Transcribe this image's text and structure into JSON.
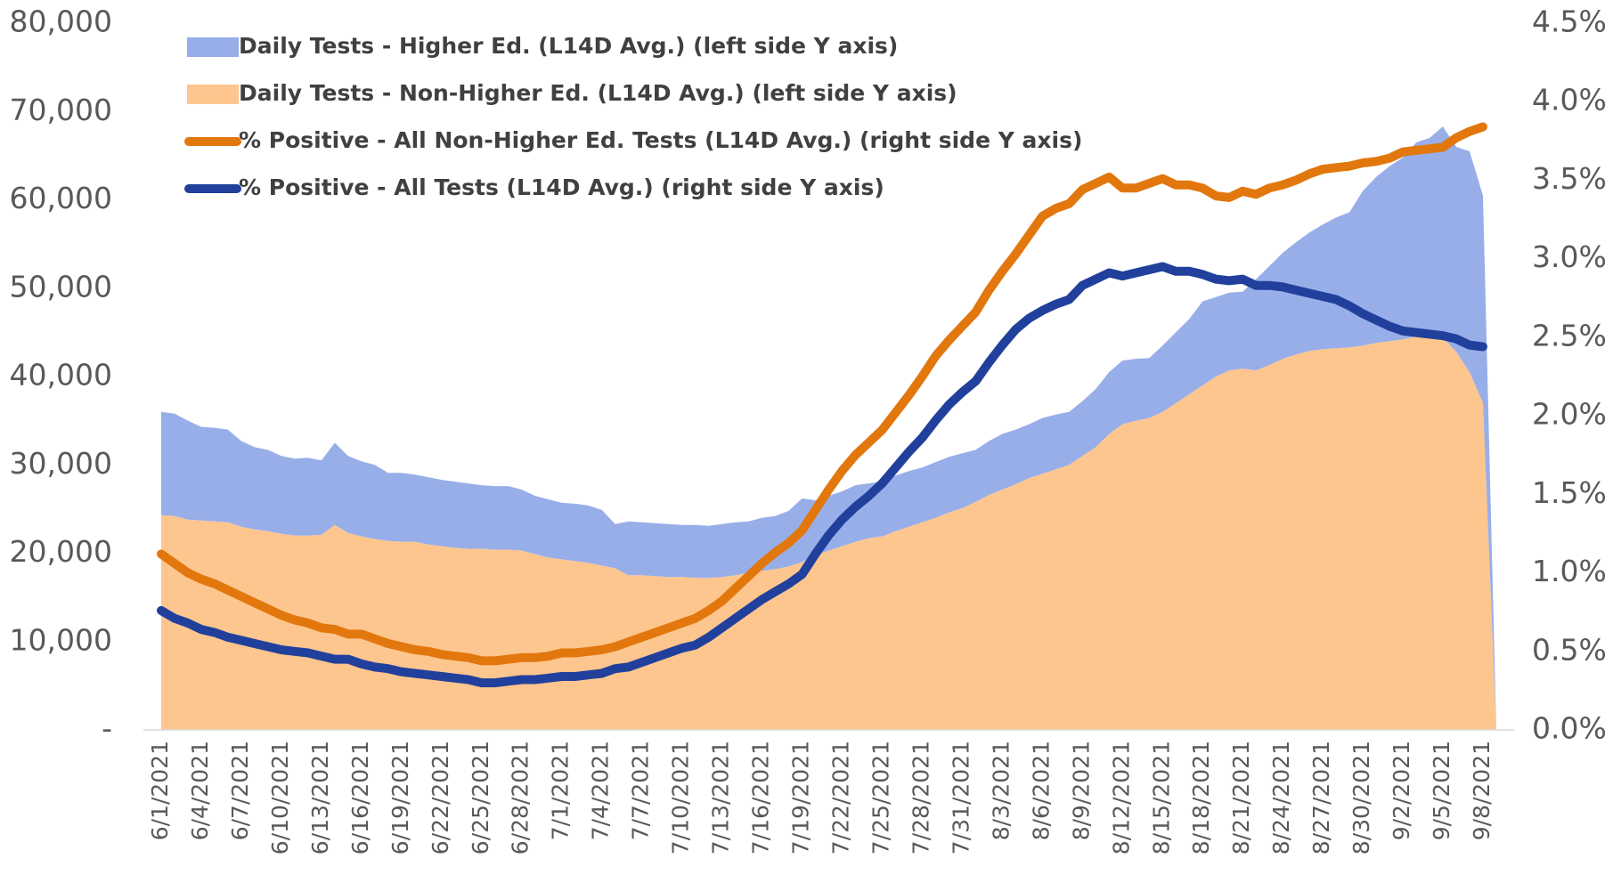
{
  "chart_data": {
    "type": "line",
    "categories": [
      "6/1/2021",
      null,
      null,
      "6/4/2021",
      null,
      null,
      "6/7/2021",
      null,
      null,
      "6/10/2021",
      null,
      null,
      "6/13/2021",
      null,
      null,
      "6/16/2021",
      null,
      null,
      "6/19/2021",
      null,
      null,
      "6/22/2021",
      null,
      null,
      "6/25/2021",
      null,
      null,
      "6/28/2021",
      null,
      null,
      "7/1/2021",
      null,
      null,
      "7/4/2021",
      null,
      null,
      "7/7/2021",
      null,
      null,
      "7/10/2021",
      null,
      null,
      "7/13/2021",
      null,
      null,
      "7/16/2021",
      null,
      null,
      "7/19/2021",
      null,
      null,
      "7/22/2021",
      null,
      null,
      "7/25/2021",
      null,
      null,
      "7/28/2021",
      null,
      null,
      "7/31/2021",
      null,
      null,
      "8/3/2021",
      null,
      null,
      "8/6/2021",
      null,
      null,
      "8/9/2021",
      null,
      null,
      "8/12/2021",
      null,
      null,
      "8/15/2021",
      null,
      null,
      "8/18/2021",
      null,
      null,
      "8/21/2021",
      null,
      null,
      "8/24/2021",
      null,
      null,
      "8/27/2021",
      null,
      null,
      "8/30/2021",
      null,
      null,
      "9/2/2021",
      null,
      null,
      "9/5/2021",
      null,
      null,
      "9/8/2021",
      null
    ],
    "series": [
      {
        "name": "Daily Tests - Higher Ed. (L14D Avg.) (left side Y axis)",
        "type": "area",
        "stacked": true,
        "color": "#98aee9",
        "values": [
          11700,
          11600,
          11200,
          10600,
          10600,
          10500,
          9700,
          9300,
          9200,
          8800,
          8700,
          8800,
          8400,
          9300,
          8700,
          8500,
          8400,
          7700,
          7800,
          7600,
          7600,
          7500,
          7500,
          7400,
          7200,
          7200,
          7200,
          6900,
          6600,
          6600,
          6400,
          6500,
          6500,
          6300,
          5000,
          6100,
          6000,
          6000,
          6000,
          5900,
          6000,
          5900,
          6000,
          6000,
          5800,
          6000,
          6000,
          6300,
          7200,
          6200,
          6200,
          6200,
          6400,
          6200,
          6200,
          6300,
          6300,
          6200,
          6300,
          6300,
          6200,
          5900,
          6100,
          6300,
          6200,
          6100,
          6300,
          6200,
          6000,
          6200,
          6600,
          7000,
          7200,
          7000,
          6800,
          7500,
          8000,
          8500,
          9500,
          9000,
          8800,
          8700,
          10300,
          11200,
          12000,
          12700,
          13400,
          14100,
          14800,
          15300,
          17500,
          18800,
          19800,
          20600,
          22000,
          22400,
          23900,
          23200,
          25000,
          23500,
          0
        ]
      },
      {
        "name": "Daily Tests - Non-Higher Ed. (L14D Avg.) (left side Y axis)",
        "type": "area",
        "stacked": true,
        "color": "#fdc68f",
        "values": [
          24300,
          24200,
          23800,
          23700,
          23600,
          23500,
          23000,
          22700,
          22500,
          22200,
          22000,
          22000,
          22100,
          23200,
          22300,
          21900,
          21600,
          21400,
          21300,
          21300,
          21000,
          20800,
          20600,
          20500,
          20500,
          20400,
          20400,
          20300,
          19900,
          19500,
          19300,
          19100,
          18900,
          18600,
          18300,
          17500,
          17500,
          17400,
          17300,
          17300,
          17200,
          17200,
          17300,
          17500,
          17800,
          18000,
          18200,
          18500,
          19000,
          19800,
          20300,
          20800,
          21300,
          21700,
          21900,
          22500,
          23000,
          23500,
          24000,
          24600,
          25100,
          25800,
          26600,
          27200,
          27800,
          28500,
          29000,
          29500,
          30000,
          31000,
          32000,
          33500,
          34600,
          35000,
          35300,
          36000,
          37000,
          38000,
          39000,
          40000,
          40700,
          40900,
          40700,
          41300,
          42000,
          42500,
          42900,
          43100,
          43200,
          43300,
          43500,
          43800,
          44000,
          44200,
          44500,
          44600,
          44400,
          42800,
          40500,
          37000,
          0
        ]
      },
      {
        "name": "% Positive - All Non-Higher Ed. Tests (L14D Avg.) (right side Y axis)",
        "type": "line",
        "axis": "y2",
        "color": "#e2770d",
        "values": [
          1.12,
          1.06,
          1.0,
          0.96,
          0.93,
          0.89,
          0.85,
          0.81,
          0.77,
          0.73,
          0.7,
          0.68,
          0.65,
          0.64,
          0.61,
          0.61,
          0.58,
          0.55,
          0.53,
          0.51,
          0.5,
          0.48,
          0.47,
          0.46,
          0.44,
          0.44,
          0.45,
          0.46,
          0.46,
          0.47,
          0.49,
          0.49,
          0.5,
          0.51,
          0.53,
          0.56,
          0.59,
          0.62,
          0.65,
          0.68,
          0.71,
          0.76,
          0.82,
          0.9,
          0.98,
          1.06,
          1.13,
          1.19,
          1.27,
          1.4,
          1.53,
          1.65,
          1.75,
          1.83,
          1.91,
          2.02,
          2.13,
          2.25,
          2.38,
          2.48,
          2.57,
          2.66,
          2.8,
          2.92,
          3.03,
          3.15,
          3.27,
          3.32,
          3.35,
          3.44,
          3.48,
          3.52,
          3.45,
          3.45,
          3.48,
          3.51,
          3.47,
          3.47,
          3.45,
          3.4,
          3.39,
          3.43,
          3.41,
          3.45,
          3.47,
          3.5,
          3.54,
          3.57,
          3.58,
          3.59,
          3.61,
          3.62,
          3.64,
          3.68,
          3.69,
          3.7,
          3.71,
          3.77,
          3.81,
          3.84,
          null
        ]
      },
      {
        "name": "% Positive - All Tests (L14D Avg.) (right side Y axis)",
        "type": "line",
        "axis": "y2",
        "color": "#21409c",
        "values": [
          0.76,
          0.71,
          0.68,
          0.64,
          0.62,
          0.59,
          0.57,
          0.55,
          0.53,
          0.51,
          0.5,
          0.49,
          0.47,
          0.45,
          0.45,
          0.42,
          0.4,
          0.39,
          0.37,
          0.36,
          0.35,
          0.34,
          0.33,
          0.32,
          0.3,
          0.3,
          0.31,
          0.32,
          0.32,
          0.33,
          0.34,
          0.34,
          0.35,
          0.36,
          0.39,
          0.4,
          0.43,
          0.46,
          0.49,
          0.52,
          0.54,
          0.59,
          0.65,
          0.71,
          0.77,
          0.83,
          0.88,
          0.93,
          0.99,
          1.12,
          1.24,
          1.34,
          1.42,
          1.49,
          1.57,
          1.67,
          1.77,
          1.86,
          1.97,
          2.07,
          2.15,
          2.22,
          2.34,
          2.45,
          2.55,
          2.62,
          2.67,
          2.71,
          2.74,
          2.83,
          2.87,
          2.91,
          2.89,
          2.91,
          2.93,
          2.95,
          2.92,
          2.92,
          2.9,
          2.87,
          2.86,
          2.87,
          2.83,
          2.83,
          2.82,
          2.8,
          2.78,
          2.76,
          2.74,
          2.7,
          2.65,
          2.61,
          2.57,
          2.54,
          2.53,
          2.52,
          2.51,
          2.49,
          2.45,
          2.44,
          null
        ]
      }
    ],
    "ylim": [
      0,
      80000
    ],
    "yticks": [
      {
        "value": 0,
        "label": "-"
      },
      {
        "value": 10000,
        "label": "10,000"
      },
      {
        "value": 20000,
        "label": "20,000"
      },
      {
        "value": 30000,
        "label": "30,000"
      },
      {
        "value": 40000,
        "label": "40,000"
      },
      {
        "value": 50000,
        "label": "50,000"
      },
      {
        "value": 60000,
        "label": "60,000"
      },
      {
        "value": 70000,
        "label": "70,000"
      },
      {
        "value": 80000,
        "label": "80,000"
      }
    ],
    "y2lim": [
      0,
      4.5
    ],
    "y2ticks": [
      {
        "value": 0,
        "label": "0.0%"
      },
      {
        "value": 0.5,
        "label": "0.5%"
      },
      {
        "value": 1,
        "label": "1.0%"
      },
      {
        "value": 1.5,
        "label": "1.5%"
      },
      {
        "value": 2,
        "label": "2.0%"
      },
      {
        "value": 2.5,
        "label": "2.5%"
      },
      {
        "value": 3,
        "label": "3.0%"
      },
      {
        "value": 3.5,
        "label": "3.5%"
      },
      {
        "value": 4,
        "label": "4.0%"
      },
      {
        "value": 4.5,
        "label": "4.5%"
      }
    ],
    "grid": false,
    "legend": "upper left"
  }
}
